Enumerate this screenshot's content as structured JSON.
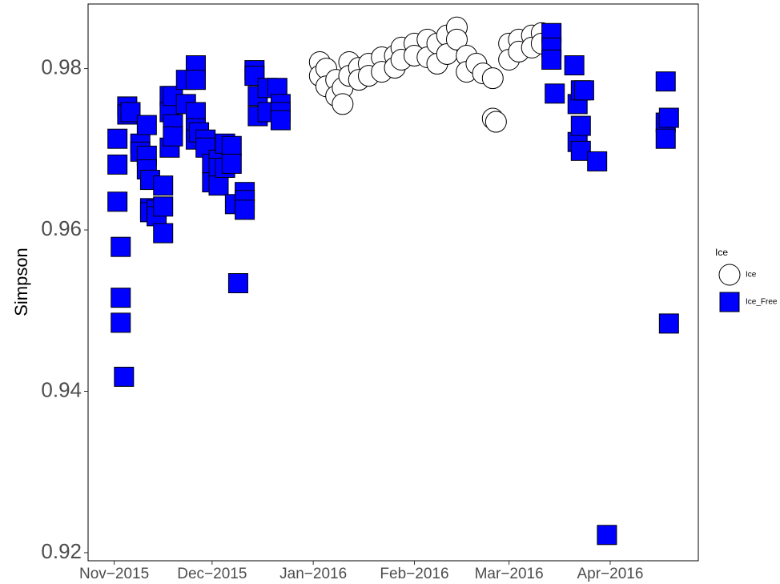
{
  "chart_data": {
    "type": "scatter",
    "y_label": "Simpson",
    "legend_title": "Ice",
    "legend_position": "right",
    "xlim": [
      "2015-10-24",
      "2016-04-28"
    ],
    "xticks": [
      {
        "value": "2015-11-01",
        "label": "Nov−2015"
      },
      {
        "value": "2015-12-01",
        "label": "Dec−2015"
      },
      {
        "value": "2016-01-01",
        "label": "Jan−2016"
      },
      {
        "value": "2016-02-01",
        "label": "Feb−2016"
      },
      {
        "value": "2016-03-01",
        "label": "Mar−2016"
      },
      {
        "value": "2016-04-01",
        "label": "Apr−2016"
      }
    ],
    "ylim": [
      0.919,
      0.988
    ],
    "yticks": [
      0.92,
      0.94,
      0.96,
      0.98
    ],
    "series": [
      {
        "name": "Ice",
        "marker": "circle",
        "color": "#ffffff",
        "x": [
          "2016-01-03",
          "2016-01-03",
          "2016-01-05",
          "2016-01-05",
          "2016-01-08",
          "2016-01-08",
          "2016-01-10",
          "2016-01-10",
          "2016-01-12",
          "2016-01-12",
          "2016-01-15",
          "2016-01-15",
          "2016-01-18",
          "2016-01-18",
          "2016-01-22",
          "2016-01-22",
          "2016-01-26",
          "2016-01-26",
          "2016-01-28",
          "2016-01-28",
          "2016-02-01",
          "2016-02-01",
          "2016-02-05",
          "2016-02-05",
          "2016-02-08",
          "2016-02-08",
          "2016-02-11",
          "2016-02-11",
          "2016-02-14",
          "2016-02-14",
          "2016-02-17",
          "2016-02-17",
          "2016-02-20",
          "2016-02-22",
          "2016-02-25",
          "2016-02-25",
          "2016-02-26",
          "2016-03-01",
          "2016-03-01",
          "2016-03-04",
          "2016-03-04",
          "2016-03-08",
          "2016-03-08",
          "2016-03-11",
          "2016-03-11"
        ],
        "values": [
          0.9808,
          0.9791,
          0.98,
          0.9778,
          0.9786,
          0.9766,
          0.9776,
          0.9756,
          0.9808,
          0.9791,
          0.9801,
          0.9786,
          0.9806,
          0.9791,
          0.9814,
          0.9796,
          0.9816,
          0.9801,
          0.9826,
          0.9811,
          0.9831,
          0.9816,
          0.9836,
          0.9814,
          0.9831,
          0.9806,
          0.9841,
          0.9818,
          0.9851,
          0.9836,
          0.9816,
          0.9796,
          0.9806,
          0.9794,
          0.9788,
          0.9738,
          0.9734,
          0.9831,
          0.9811,
          0.9836,
          0.9821,
          0.9841,
          0.9826,
          0.9844,
          0.9831
        ]
      },
      {
        "name": "Ice_Free",
        "marker": "square",
        "color": "#0000ff",
        "x": [
          "2015-11-02",
          "2015-11-02",
          "2015-11-02",
          "2015-11-03",
          "2015-11-03",
          "2015-11-03",
          "2015-11-04",
          "2015-11-05",
          "2015-11-05",
          "2015-11-06",
          "2015-11-09",
          "2015-11-09",
          "2015-11-11",
          "2015-11-11",
          "2015-11-11",
          "2015-11-12",
          "2015-11-12",
          "2015-11-12",
          "2015-11-14",
          "2015-11-14",
          "2015-11-16",
          "2015-11-16",
          "2015-11-16",
          "2015-11-18",
          "2015-11-18",
          "2015-11-18",
          "2015-11-19",
          "2015-11-19",
          "2015-11-19",
          "2015-11-23",
          "2015-11-23",
          "2015-11-26",
          "2015-11-26",
          "2015-11-26",
          "2015-11-26",
          "2015-11-26",
          "2015-11-27",
          "2015-11-29",
          "2015-11-29",
          "2015-12-01",
          "2015-12-01",
          "2015-12-03",
          "2015-12-03",
          "2015-12-03",
          "2015-12-05",
          "2015-12-05",
          "2015-12-07",
          "2015-12-07",
          "2015-12-08",
          "2015-12-09",
          "2015-12-11",
          "2015-12-11",
          "2015-12-11",
          "2015-12-14",
          "2015-12-14",
          "2015-12-15",
          "2015-12-15",
          "2015-12-18",
          "2015-12-18",
          "2015-12-21",
          "2015-12-22",
          "2015-12-22",
          "2015-12-22",
          "2016-03-14",
          "2016-03-14",
          "2016-03-14",
          "2016-03-15",
          "2016-03-21",
          "2016-03-22",
          "2016-03-22",
          "2016-03-23",
          "2016-03-23",
          "2016-03-23",
          "2016-03-24",
          "2016-03-28",
          "2016-03-31",
          "2016-04-18",
          "2016-04-18",
          "2016-04-18",
          "2016-04-19",
          "2016-04-19"
        ],
        "values": [
          0.9713,
          0.9681,
          0.9635,
          0.9579,
          0.9516,
          0.9485,
          0.9418,
          0.9753,
          0.9743,
          0.9746,
          0.9707,
          0.9697,
          0.973,
          0.9692,
          0.9675,
          0.9662,
          0.9627,
          0.9622,
          0.9625,
          0.9617,
          0.9596,
          0.9629,
          0.9655,
          0.9702,
          0.9766,
          0.9746,
          0.9731,
          0.9716,
          0.9766,
          0.9786,
          0.9756,
          0.9804,
          0.9786,
          0.9746,
          0.9726,
          0.9712,
          0.9721,
          0.9712,
          0.9702,
          0.9682,
          0.9659,
          0.9687,
          0.9677,
          0.9655,
          0.9707,
          0.9677,
          0.9704,
          0.9682,
          0.9632,
          0.9534,
          0.9647,
          0.9637,
          0.9625,
          0.9798,
          0.9791,
          0.9766,
          0.9741,
          0.9776,
          0.9746,
          0.9776,
          0.9756,
          0.9746,
          0.9736,
          0.9844,
          0.9826,
          0.9811,
          0.9769,
          0.9804,
          0.9756,
          0.9709,
          0.9729,
          0.9698,
          0.9773,
          0.9773,
          0.9685,
          0.9222,
          0.9784,
          0.9733,
          0.9713,
          0.9739,
          0.9484
        ]
      }
    ]
  }
}
